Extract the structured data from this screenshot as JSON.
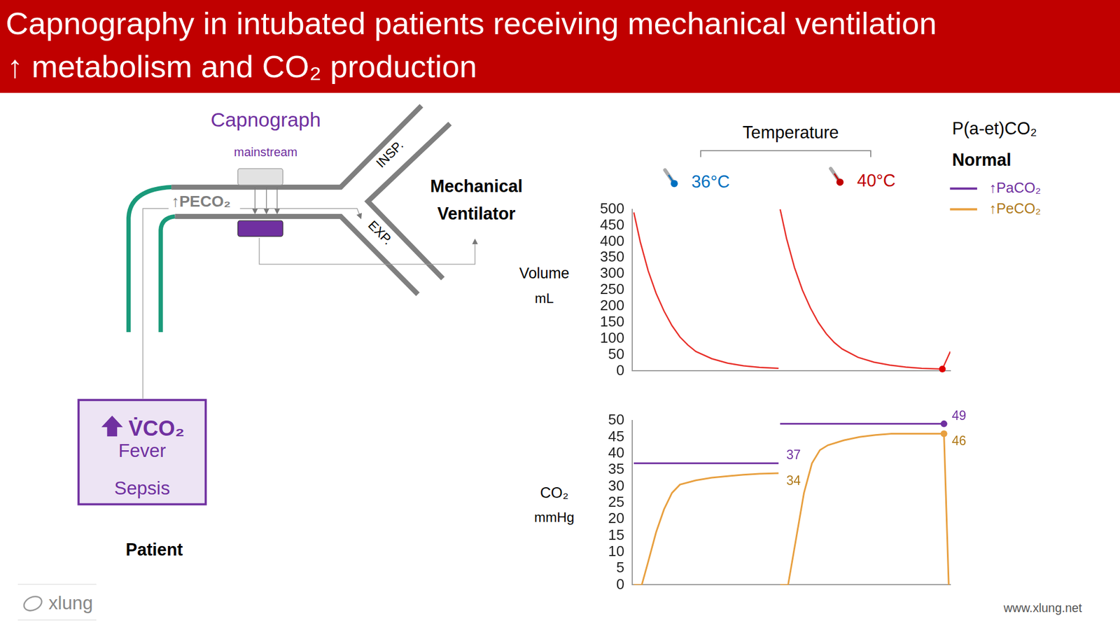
{
  "header": {
    "title": "Capnography in intubated patients receiving mechanical ventilation",
    "subtitle": "↑ metabolism and CO₂ production"
  },
  "diagram": {
    "capnograph": "Capnograph",
    "sensor_type": "mainstream",
    "sensor_reading": "↑PECO₂",
    "inspiratory_limb": "INSP.",
    "expiratory_limb": "EXP.",
    "ventilator": "Mechanical Ventilator",
    "patient_box": {
      "title": "V̇CO₂",
      "causes": [
        "Fever",
        "Sepsis"
      ]
    },
    "patient": "Patient"
  },
  "temperature": {
    "title": "Temperature",
    "conditions": [
      {
        "label": "36°C",
        "color": "#0070c0"
      },
      {
        "label": "40°C",
        "color": "#c00000"
      }
    ]
  },
  "legend_box": {
    "title": "P(a-et)CO₂",
    "status": "Normal"
  },
  "chart_data": [
    {
      "type": "line",
      "ylabel": [
        "Volume",
        "mL"
      ],
      "x": [
        0.1,
        0.5,
        1,
        1.5,
        2,
        2.5,
        3,
        3.5,
        4,
        5,
        6,
        7,
        8,
        9.2,
        9.25,
        9.3,
        9.7,
        10.2,
        10.7,
        11.2,
        11.7,
        12.2,
        12.7,
        13.2,
        14.2,
        15.2,
        16.2,
        17.2,
        18.2,
        19.5,
        20
      ],
      "values": [
        490,
        400,
        310,
        240,
        185,
        140,
        105,
        80,
        60,
        38,
        24,
        16,
        11,
        8,
        null,
        500,
        410,
        320,
        250,
        195,
        150,
        115,
        88,
        68,
        42,
        27,
        18,
        12,
        8,
        6,
        60
      ],
      "color": "#e8302a",
      "markers": [
        {
          "x": 19.5,
          "y": 6,
          "color": "#e00000"
        }
      ],
      "xlim": [
        0,
        20
      ],
      "ylim": [
        0,
        500
      ],
      "yticks": [
        0,
        50,
        100,
        150,
        200,
        250,
        300,
        350,
        400,
        450,
        500
      ],
      "grid": false,
      "tick_labels": "y"
    },
    {
      "type": "line",
      "ylabel": [
        "CO₂",
        "mmHg"
      ],
      "x": [
        0.1,
        0.6,
        1,
        1.5,
        2,
        2.5,
        3,
        4,
        5,
        6,
        7,
        8,
        9.2,
        9.25,
        9.3,
        9.8,
        10.3,
        10.8,
        11.3,
        11.8,
        12.3,
        13.3,
        14.3,
        15.3,
        16.3,
        17.3,
        18.3,
        19.6,
        19.9
      ],
      "series": [
        {
          "name": "↑PaCO₂",
          "color": "#7030a0",
          "values": [
            37,
            37,
            37,
            37,
            37,
            37,
            37,
            37,
            37,
            37,
            37,
            37,
            37,
            null,
            49,
            49,
            49,
            49,
            49,
            49,
            49,
            49,
            49,
            49,
            49,
            49,
            49,
            49,
            null
          ]
        },
        {
          "name": "↑PeCO₂",
          "color": "#e8a040",
          "values": [
            0,
            0,
            7,
            16,
            23,
            28,
            30.5,
            31.8,
            32.6,
            33.1,
            33.5,
            33.8,
            34,
            null,
            0,
            0,
            14,
            28,
            37,
            41,
            42.5,
            44,
            45,
            45.6,
            46,
            46,
            46,
            46,
            0
          ]
        }
      ],
      "annotations": [
        {
          "text": "37",
          "x": 9.2,
          "y": 37,
          "color": "#7030a0"
        },
        {
          "text": "34",
          "x": 9.2,
          "y": 34,
          "color": "#b07a1a"
        },
        {
          "text": "49",
          "x": 19.6,
          "y": 49,
          "color": "#7030a0"
        },
        {
          "text": "46",
          "x": 19.6,
          "y": 46,
          "color": "#b07a1a"
        }
      ],
      "markers": [
        {
          "x": 19.6,
          "y": 49,
          "color": "#7030a0"
        },
        {
          "x": 19.6,
          "y": 46,
          "color": "#e8a040"
        }
      ],
      "xlim": [
        0,
        20
      ],
      "ylim": [
        0,
        50
      ],
      "yticks": [
        0,
        5,
        10,
        15,
        20,
        25,
        30,
        35,
        40,
        45,
        50
      ],
      "grid": false,
      "tick_labels": "y",
      "legend": "top right"
    }
  ],
  "footer": {
    "logo": "xlung",
    "url": "www.xlung.net"
  }
}
